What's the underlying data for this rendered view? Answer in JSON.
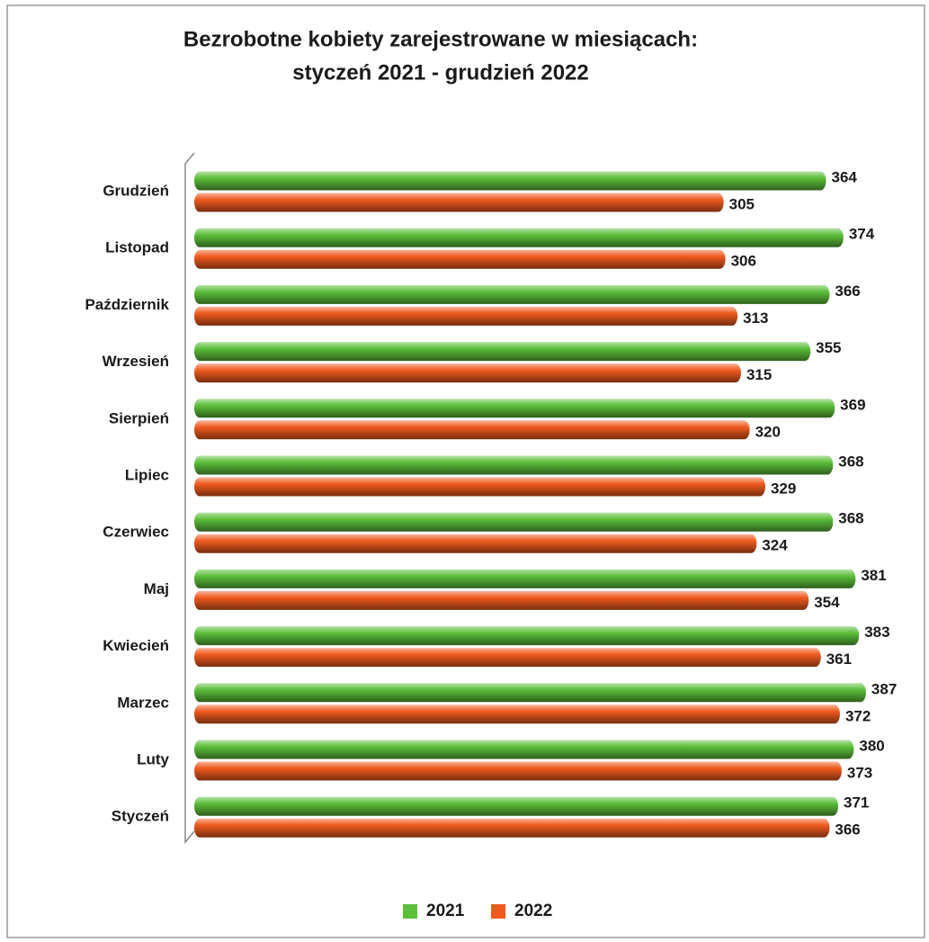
{
  "chart_data": {
    "type": "bar",
    "orientation": "horizontal",
    "title": [
      "Bezrobotne kobiety zarejestrowane w miesiącach:",
      "styczeń 2021 - grudzień 2022"
    ],
    "categories": [
      "Grudzień",
      "Listopad",
      "Październik",
      "Wrzesień",
      "Sierpień",
      "Lipiec",
      "Czerwiec",
      "Maj",
      "Kwiecień",
      "Marzec",
      "Luty",
      "Styczeń"
    ],
    "series": [
      {
        "name": "2021",
        "color": "#5cbf3a",
        "values": [
          364,
          374,
          366,
          355,
          369,
          368,
          368,
          381,
          383,
          387,
          380,
          371
        ]
      },
      {
        "name": "2022",
        "color": "#f05a1e",
        "values": [
          305,
          306,
          313,
          315,
          320,
          329,
          324,
          354,
          361,
          372,
          373,
          366
        ]
      }
    ],
    "xlim": [
      0,
      400
    ],
    "legend": "bottom"
  }
}
